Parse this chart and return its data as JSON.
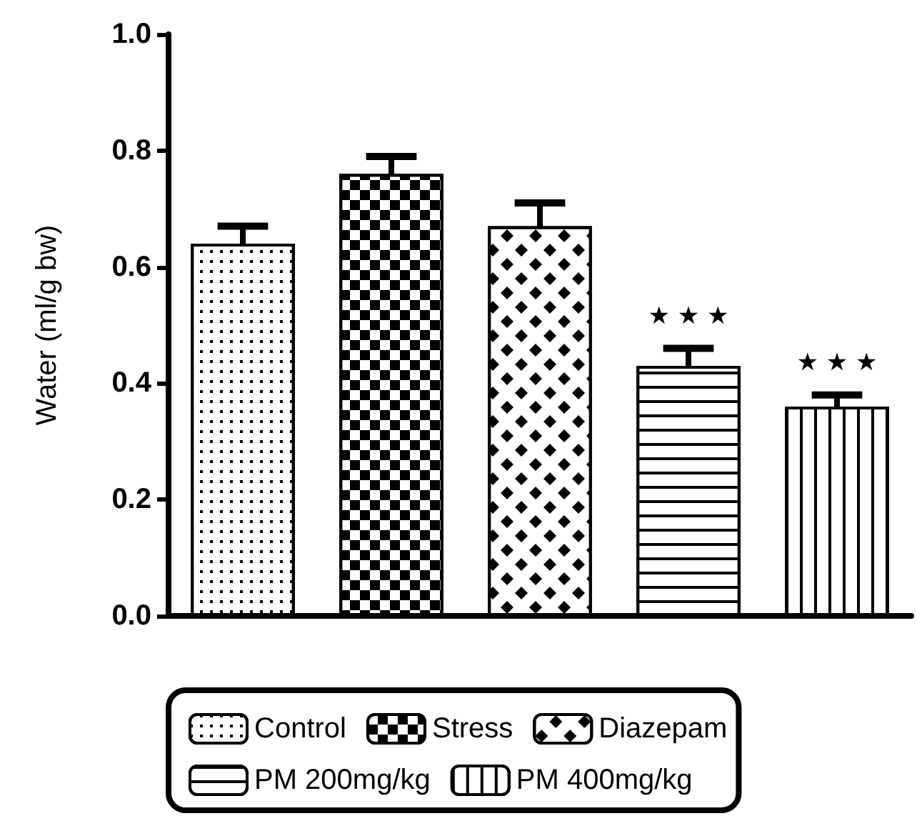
{
  "chart_data": {
    "type": "bar",
    "ylabel": "Water (ml/g bw)",
    "categories": [
      null,
      null,
      null,
      null,
      null
    ],
    "series": [
      {
        "name": "Control",
        "color": "#000000",
        "values": [
          0.64,
          null,
          null,
          null,
          null
        ],
        "errors": [
          0.03,
          null,
          null,
          null,
          null
        ]
      },
      {
        "name": "Stress",
        "color": "#000000",
        "values": [
          null,
          0.76,
          null,
          null,
          null
        ],
        "errors": [
          null,
          0.03,
          null,
          null,
          null
        ]
      },
      {
        "name": "Diazepam",
        "color": "#000000",
        "values": [
          null,
          null,
          0.67,
          null,
          null
        ],
        "errors": [
          null,
          null,
          0.04,
          null,
          null
        ]
      },
      {
        "name": "PM 200mg/kg",
        "color": "#000000",
        "values": [
          null,
          null,
          null,
          0.43,
          null
        ],
        "errors": [
          null,
          null,
          null,
          0.03,
          null
        ],
        "value_labels": [
          null,
          null,
          null,
          "★ ★ ★",
          null
        ]
      },
      {
        "name": "PM 400mg/kg",
        "color": "#000000",
        "values": [
          null,
          null,
          null,
          null,
          0.36
        ],
        "errors": [
          null,
          null,
          null,
          null,
          0.02
        ],
        "value_labels": [
          null,
          null,
          null,
          null,
          "★ ★ ★"
        ]
      }
    ],
    "ylim": [
      0,
      1
    ],
    "yticks": [
      {
        "value": 0,
        "label": "0.0"
      },
      {
        "value": 0.2,
        "label": "0.2"
      },
      {
        "value": 0.4,
        "label": "0.4"
      },
      {
        "value": 0.6,
        "label": "0.6"
      },
      {
        "value": 0.8,
        "label": "0.8"
      },
      {
        "value": 1,
        "label": "1.0"
      }
    ],
    "grid": false,
    "legend": "bottom"
  }
}
